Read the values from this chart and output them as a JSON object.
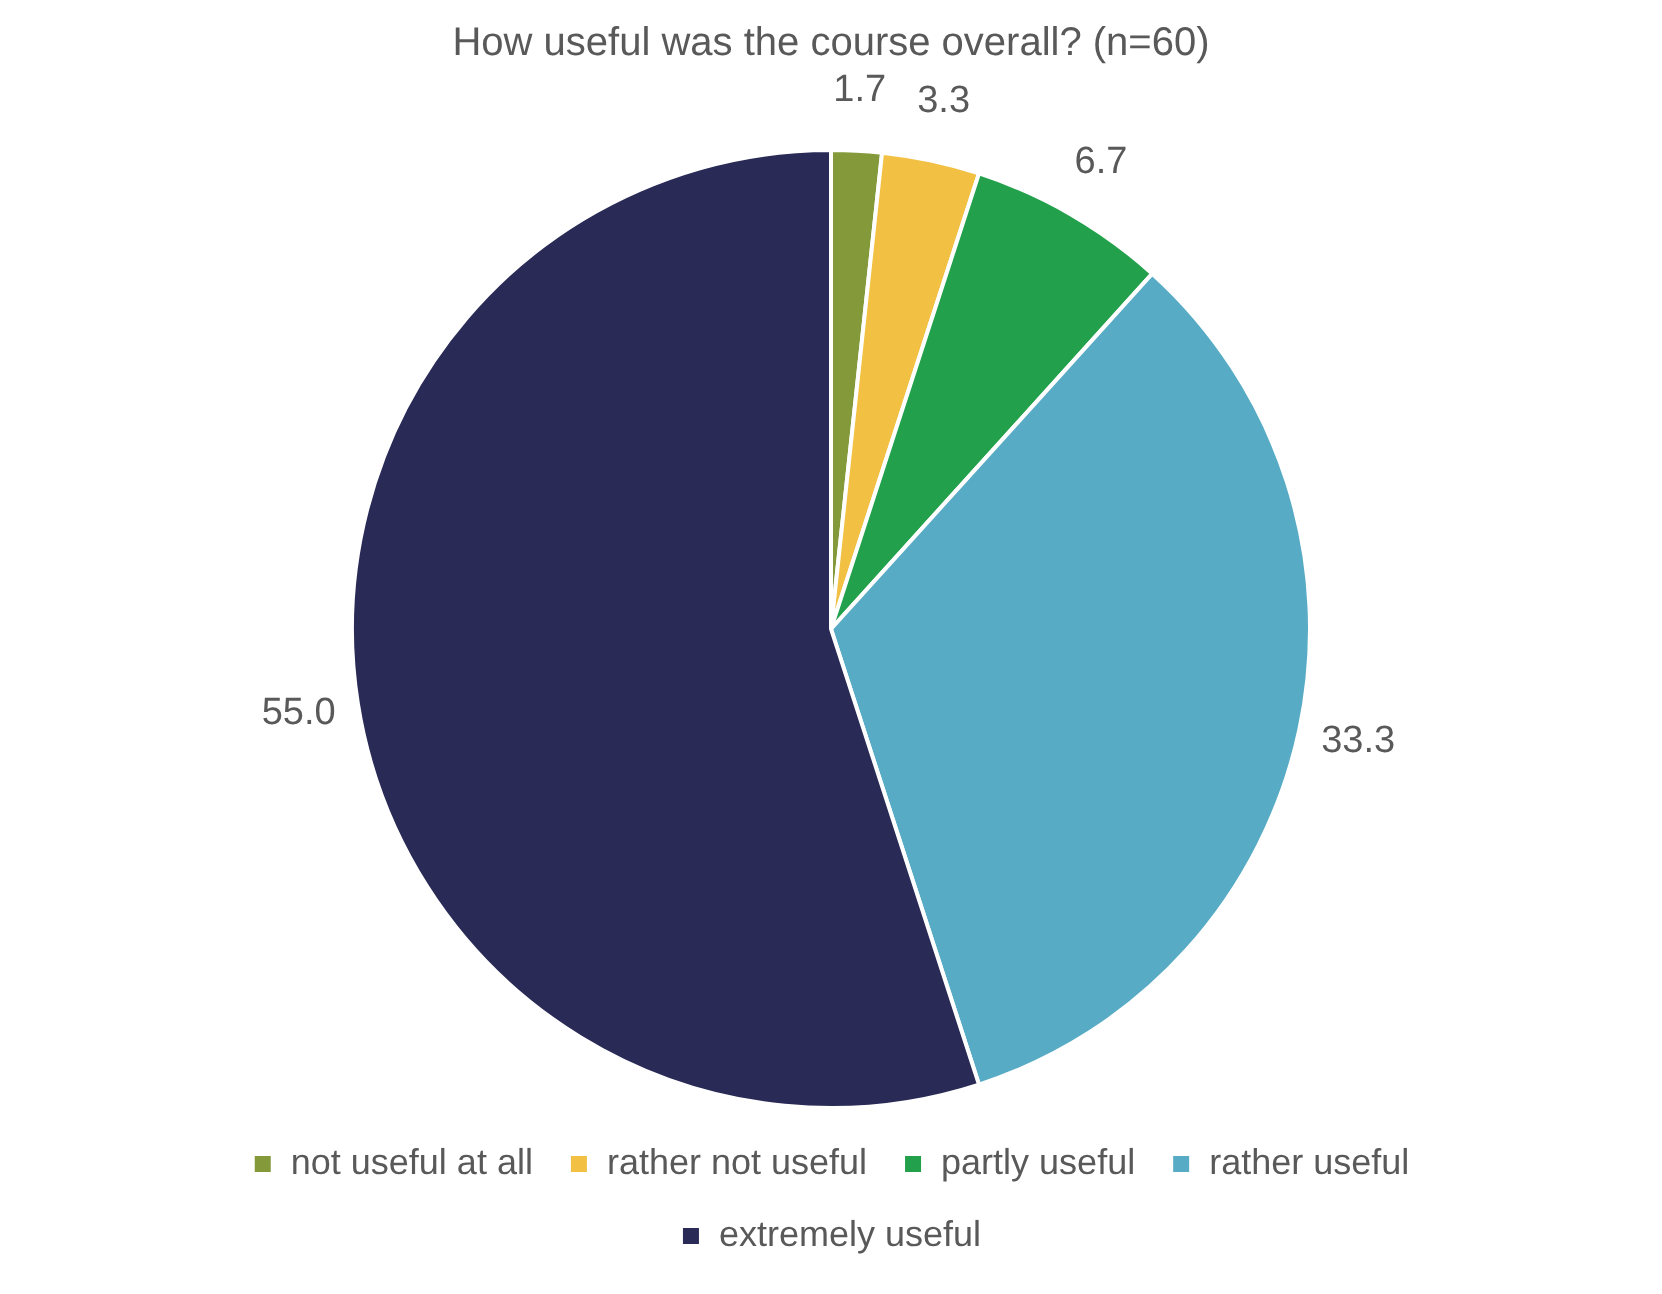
{
  "chart_data": {
    "type": "pie",
    "title": "How useful was the course overall? (n=60)",
    "categories": [
      "not useful at all",
      "rather not useful",
      "partly useful",
      "rather useful",
      "extremely useful"
    ],
    "values": [
      1.7,
      3.3,
      6.7,
      33.3,
      55.0
    ],
    "colors": [
      "#84993a",
      "#f2c144",
      "#22a04b",
      "#58abc5",
      "#292a56"
    ],
    "value_labels": [
      "1.7",
      "3.3",
      "6.7",
      "33.3",
      "55.0"
    ],
    "legend": "bottom"
  }
}
